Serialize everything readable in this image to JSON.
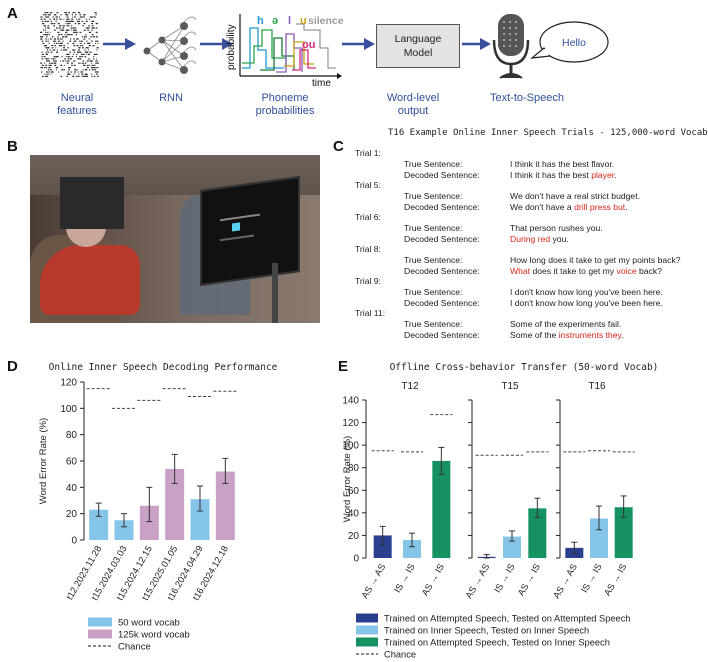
{
  "panels": {
    "a": "A",
    "b": "B",
    "c": "C",
    "d": "D",
    "e": "E"
  },
  "pipeline": {
    "neural_features": "Neural features",
    "rnn": "RNN",
    "phoneme_probabilities": "Phoneme probabilities",
    "word_level_output": "Word-level output",
    "text_to_speech": "Text-to-Speech",
    "prob_axis": "probability",
    "time_axis": "time",
    "phonemes": [
      "h",
      "ə",
      "l",
      "u",
      "silence",
      "ou"
    ],
    "language_model_label": "Language Model",
    "bubble_text": "Hello"
  },
  "trials": {
    "title": "T16 Example Online Inner Speech Trials - 125,000-word Vocab",
    "true_label": "True Sentence:",
    "decoded_label": "Decoded Sentence:",
    "items": [
      {
        "label": "Trial 1:",
        "true": "I think it has the best flavor.",
        "decoded": [
          {
            "t": "I think it has the best ",
            "err": false
          },
          {
            "t": "player",
            "err": true
          },
          {
            "t": ".",
            "err": false
          }
        ]
      },
      {
        "label": "Trial 5:",
        "true": "We don't have a real strict budget.",
        "decoded": [
          {
            "t": "We don't have a ",
            "err": false
          },
          {
            "t": "drill press but",
            "err": true
          },
          {
            "t": ".",
            "err": false
          }
        ]
      },
      {
        "label": "Trial 6:",
        "true": "That person rushes you.",
        "decoded": [
          {
            "t": "During red",
            "err": true
          },
          {
            "t": " you.",
            "err": false
          }
        ]
      },
      {
        "label": "Trial 8:",
        "true": "How long does it take to get my points back?",
        "decoded": [
          {
            "t": "What",
            "err": true
          },
          {
            "t": " does it take to get my ",
            "err": false
          },
          {
            "t": "voice",
            "err": true
          },
          {
            "t": " back?",
            "err": false
          }
        ]
      },
      {
        "label": "Trial 9:",
        "true": "I don't know how long you've been here.",
        "decoded": [
          {
            "t": "I don't know how long you've been here.",
            "err": false
          }
        ]
      },
      {
        "label": "Trial 11:",
        "true": "Some of the experiments fail.",
        "decoded": [
          {
            "t": "Some of the ",
            "err": false
          },
          {
            "t": "instruments they",
            "err": true
          },
          {
            "t": ".",
            "err": false
          }
        ]
      }
    ]
  },
  "chart_data": [
    {
      "type": "bar",
      "id": "D",
      "title": "Online Inner Speech Decoding Performance",
      "ylabel": "Word Error Rate (%)",
      "xlabel": "",
      "ylim": [
        0,
        120
      ],
      "yticks": [
        0,
        20,
        40,
        60,
        80,
        100,
        120
      ],
      "categories": [
        "t12.2023.11.28",
        "t15.2024.03.03",
        "t15.2024.12.15",
        "t15.2025.01.05",
        "t16.2024.04.29",
        "t16.2024.12.18"
      ],
      "values": [
        23,
        15,
        26,
        54,
        31,
        52
      ],
      "errors": [
        [
          18,
          28
        ],
        [
          10,
          20
        ],
        [
          14,
          40
        ],
        [
          43,
          65
        ],
        [
          22,
          41
        ],
        [
          43,
          62
        ]
      ],
      "chance": [
        115,
        100,
        106,
        115,
        109,
        113
      ],
      "bar_vocab": [
        "50",
        "50",
        "125k",
        "125k",
        "50",
        "125k"
      ],
      "legend": [
        {
          "name": "50 word vocab",
          "color": "#86c5ea"
        },
        {
          "name": "125k word vocab",
          "color": "#c9a0c6"
        },
        {
          "name": "Chance",
          "style": "dashed"
        }
      ],
      "legend_placement": "bottom",
      "grid": false
    },
    {
      "type": "bar",
      "id": "E",
      "title": "Offline Cross-behavior Transfer (50-word Vocab)",
      "ylabel": "Word Error Rate (%)",
      "ylim": [
        0,
        140
      ],
      "yticks": [
        0,
        20,
        40,
        60,
        80,
        100,
        120,
        140
      ],
      "categories": [
        "AS → AS",
        "IS → IS",
        "AS → IS"
      ],
      "subplots": [
        {
          "title": "T12",
          "values": [
            20,
            16,
            86
          ],
          "errors": [
            [
              12,
              28
            ],
            [
              10,
              22
            ],
            [
              74,
              98
            ]
          ],
          "chance": [
            95,
            94,
            127
          ]
        },
        {
          "title": "T15",
          "values": [
            1,
            19,
            44
          ],
          "errors": [
            [
              0,
              3
            ],
            [
              15,
              24
            ],
            [
              36,
              53
            ]
          ],
          "chance": [
            91,
            91,
            94
          ]
        },
        {
          "title": "T16",
          "values": [
            9,
            35,
            45
          ],
          "errors": [
            [
              4,
              14
            ],
            [
              25,
              46
            ],
            [
              36,
              55
            ]
          ],
          "chance": [
            94,
            95,
            94
          ]
        }
      ],
      "legend": [
        {
          "name": "Trained on Attempted Speech, Tested on Attempted Speech",
          "color": "#2b3f8f"
        },
        {
          "name": "Trained on Inner Speech, Tested on Inner Speech",
          "color": "#86c5ea"
        },
        {
          "name": "Trained on Attempted Speech, Tested on Inner Speech",
          "color": "#169262"
        },
        {
          "name": "Chance",
          "style": "dashed"
        }
      ],
      "legend_placement": "bottom",
      "grid": false
    }
  ]
}
